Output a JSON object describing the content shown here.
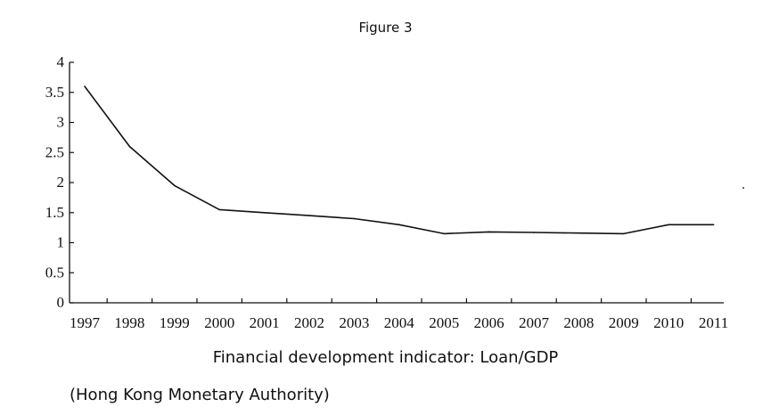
{
  "figure_title": "Figure 3",
  "caption": "Financial development indicator: Loan/GDP",
  "source": "(Hong Kong Monetary Authority)",
  "chart_data": {
    "type": "line",
    "title": "Figure 3",
    "xlabel": "Financial development indicator: Loan/GDP",
    "ylabel": "",
    "ylim": [
      0,
      4
    ],
    "yticks": [
      "0",
      "0.5",
      "1",
      "1.5",
      "2",
      "2.5",
      "3",
      "3.5",
      "4"
    ],
    "xticks": [
      "1997",
      "1998",
      "1999",
      "2000",
      "2001",
      "2002",
      "2003",
      "2004",
      "2005",
      "2006",
      "2007",
      "2008",
      "2009",
      "2010",
      "2011"
    ],
    "grid": false,
    "series": [
      {
        "x": [
          "1997",
          "1998",
          "1999",
          "2000",
          "2001",
          "2002",
          "2003",
          "2004",
          "2005",
          "2006",
          "2007",
          "2008",
          "2009",
          "2010",
          "2011"
        ],
        "values": [
          3.6,
          2.6,
          1.95,
          1.55,
          1.5,
          1.45,
          1.4,
          1.3,
          1.15,
          1.18,
          1.17,
          1.16,
          1.15,
          1.3,
          1.3
        ]
      }
    ]
  }
}
